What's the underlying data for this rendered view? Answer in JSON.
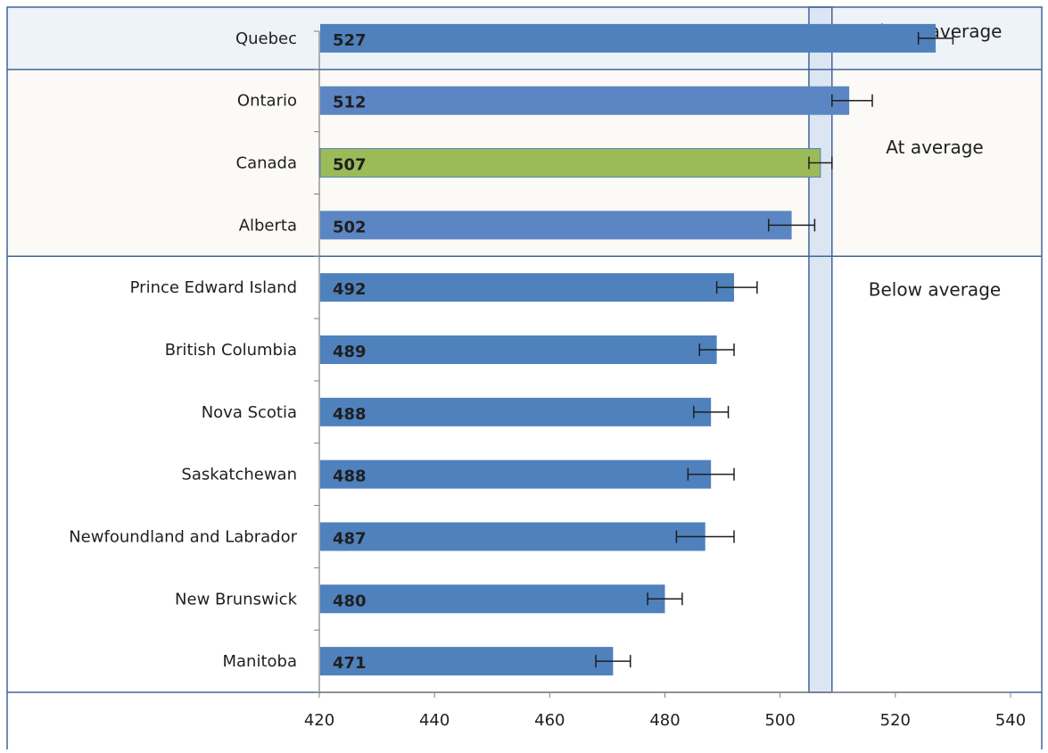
{
  "chart_data": {
    "type": "bar",
    "orientation": "horizontal",
    "categories": [
      "Quebec",
      "Ontario",
      "Canada",
      "Alberta",
      "Prince Edward Island",
      "British Columbia",
      "Nova Scotia",
      "Saskatchewan",
      "Newfoundland and Labrador",
      "New Brunswick",
      "Manitoba"
    ],
    "values": [
      527,
      512,
      507,
      502,
      492,
      489,
      488,
      488,
      487,
      480,
      471
    ],
    "error_low": [
      524,
      509,
      505,
      498,
      489,
      486,
      485,
      484,
      482,
      477,
      468
    ],
    "error_high": [
      530,
      516,
      509,
      506,
      496,
      492,
      491,
      492,
      492,
      483,
      474
    ],
    "highlight_category": "Canada",
    "xlim": [
      420,
      540
    ],
    "x_ticks": [
      "420",
      "440",
      "460",
      "480",
      "500",
      "520",
      "540"
    ],
    "canada_ci_band": [
      505,
      509
    ],
    "bands": [
      {
        "label": "Above average",
        "categories": [
          "Quebec"
        ],
        "fill": "#eef2f9"
      },
      {
        "label": "At average",
        "categories": [
          "Ontario",
          "Canada",
          "Alberta"
        ],
        "fill": "#fcfaf6"
      },
      {
        "label": "Below average",
        "categories": [
          "Prince Edward Island",
          "British Columbia",
          "Nova Scotia",
          "Saskatchewan",
          "Newfoundland and Labrador",
          "New Brunswick",
          "Manitoba"
        ],
        "fill": "#ffffff"
      }
    ],
    "colors": {
      "bar": "#4f81bd",
      "bar_light": "#5b86c3",
      "highlight": "#9bbb59",
      "band_border": "#41659a",
      "ci_band_fill": "#dce6f2",
      "axis": "#7f7f7f"
    },
    "grid": false,
    "legend": "none"
  }
}
